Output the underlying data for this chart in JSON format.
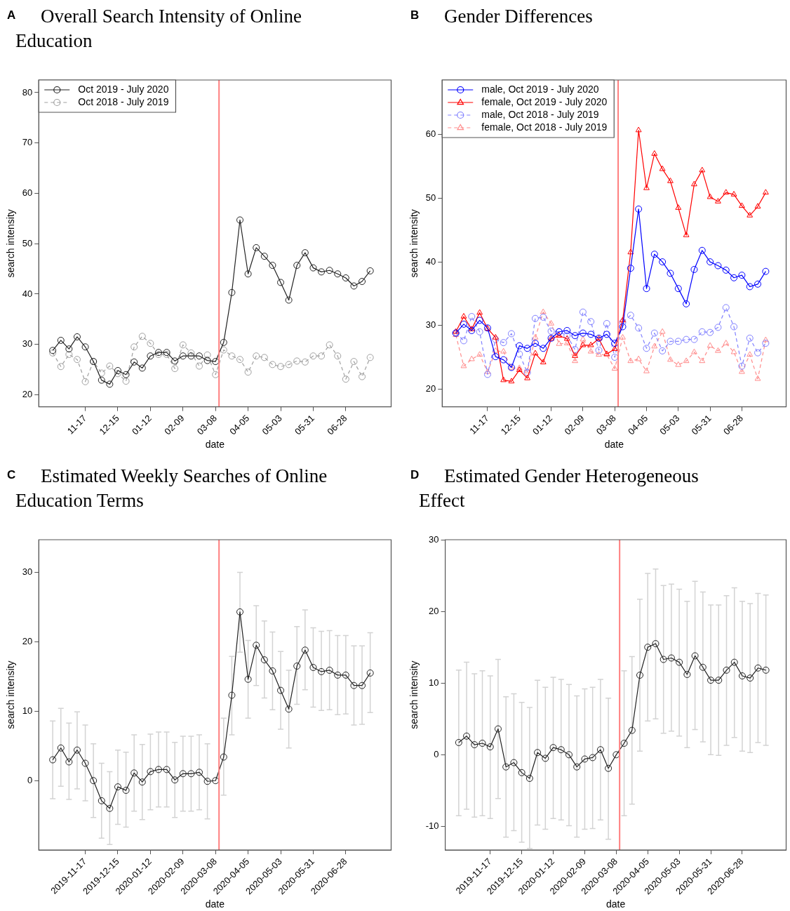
{
  "chart_data": [
    {
      "type": "line",
      "title": "Overall Search Intensity of Online Education",
      "annotations": [
        "A"
      ],
      "xlabel": "date",
      "ylabel": "search intensity",
      "legend": "top left",
      "x": [
        "2019-10-20",
        "2019-10-27",
        "2019-11-03",
        "2019-11-10",
        "2019-11-17",
        "2019-11-24",
        "2019-12-01",
        "2019-12-08",
        "2019-12-15",
        "2019-12-22",
        "2019-12-29",
        "2020-01-05",
        "2020-01-12",
        "2020-01-19",
        "2020-01-26",
        "2020-02-02",
        "2020-02-09",
        "2020-02-16",
        "2020-02-23",
        "2020-03-01",
        "2020-03-08",
        "2020-03-15",
        "2020-03-22",
        "2020-03-29",
        "2020-04-05",
        "2020-04-12",
        "2020-04-19",
        "2020-04-26",
        "2020-05-03",
        "2020-05-10",
        "2020-05-17",
        "2020-05-24",
        "2020-05-31",
        "2020-06-07",
        "2020-06-14",
        "2020-06-21",
        "2020-06-28",
        "2020-07-05",
        "2020-07-12",
        "2020-07-19"
      ],
      "xlim": [
        "2019-10-08",
        "2020-08-06"
      ],
      "xticks": [
        {
          "value": "2019-11-17",
          "label": "11-17"
        },
        {
          "value": "2019-12-15",
          "label": "12-15"
        },
        {
          "value": "2020-01-12",
          "label": "01-12"
        },
        {
          "value": "2020-02-09",
          "label": "02-09"
        },
        {
          "value": "2020-03-08",
          "label": "03-08"
        },
        {
          "value": "2020-04-05",
          "label": "04-05"
        },
        {
          "value": "2020-05-03",
          "label": "05-03"
        },
        {
          "value": "2020-05-31",
          "label": "05-31"
        },
        {
          "value": "2020-06-28",
          "label": "06-28"
        }
      ],
      "ylim": [
        17.6,
        82.5
      ],
      "yticks": [
        20,
        30,
        40,
        50,
        60,
        70,
        80
      ],
      "ref_lines": [
        {
          "axis": "x",
          "value": "2020-03-11",
          "color": "#ff7f7f"
        }
      ],
      "series": [
        {
          "name": "Oct 2019 - July 2020",
          "color": "#222222",
          "marker": "circle",
          "line_style": "solid",
          "values": [
            28.8,
            30.8,
            29.1,
            31.5,
            29.5,
            26.6,
            22.9,
            22.1,
            24.8,
            24.0,
            26.5,
            25.3,
            27.7,
            28.4,
            28.4,
            26.7,
            27.7,
            27.7,
            27.7,
            26.8,
            26.6,
            30.4,
            40.3,
            54.7,
            44.0,
            49.2,
            47.5,
            45.7,
            42.3,
            38.8,
            45.7,
            48.2,
            45.2,
            44.4,
            44.7,
            44.0,
            43.2,
            41.6,
            42.5,
            44.6
          ]
        },
        {
          "name": "Oct 2018 - July 2019",
          "color": "#a0a0a0",
          "marker": "circle",
          "line_style": "dashed",
          "values": [
            28.3,
            25.6,
            28.0,
            27.0,
            22.6,
            26.6,
            24.3,
            25.7,
            24.2,
            22.7,
            29.5,
            31.6,
            30.2,
            28.0,
            28.0,
            25.2,
            29.9,
            28.3,
            25.7,
            27.9,
            24.0,
            28.9,
            27.7,
            27.0,
            24.5,
            27.7,
            27.4,
            26.0,
            25.6,
            26.0,
            26.7,
            26.5,
            27.7,
            27.7,
            29.9,
            27.7,
            23.1,
            26.6,
            23.6,
            27.4
          ]
        }
      ]
    },
    {
      "type": "line",
      "title": "Gender Differences",
      "annotations": [
        "B"
      ],
      "xlabel": "date",
      "ylabel": "search intensity",
      "legend": "top left",
      "x": [
        "2019-10-20",
        "2019-10-27",
        "2019-11-03",
        "2019-11-10",
        "2019-11-17",
        "2019-11-24",
        "2019-12-01",
        "2019-12-08",
        "2019-12-15",
        "2019-12-22",
        "2019-12-29",
        "2020-01-05",
        "2020-01-12",
        "2020-01-19",
        "2020-01-26",
        "2020-02-02",
        "2020-02-09",
        "2020-02-16",
        "2020-02-23",
        "2020-03-01",
        "2020-03-08",
        "2020-03-15",
        "2020-03-22",
        "2020-03-29",
        "2020-04-05",
        "2020-04-12",
        "2020-04-19",
        "2020-04-26",
        "2020-05-03",
        "2020-05-10",
        "2020-05-17",
        "2020-05-24",
        "2020-05-31",
        "2020-06-07",
        "2020-06-14",
        "2020-06-21",
        "2020-06-28",
        "2020-07-05",
        "2020-07-12",
        "2020-07-19"
      ],
      "xlim": [
        "2019-10-08",
        "2020-08-06"
      ],
      "xticks": [
        {
          "value": "2019-11-17",
          "label": "11-17"
        },
        {
          "value": "2019-12-15",
          "label": "12-15"
        },
        {
          "value": "2020-01-12",
          "label": "01-12"
        },
        {
          "value": "2020-02-09",
          "label": "02-09"
        },
        {
          "value": "2020-03-08",
          "label": "03-08"
        },
        {
          "value": "2020-04-05",
          "label": "04-05"
        },
        {
          "value": "2020-05-03",
          "label": "05-03"
        },
        {
          "value": "2020-05-31",
          "label": "05-31"
        },
        {
          "value": "2020-06-28",
          "label": "06-28"
        }
      ],
      "ylim": [
        17.2,
        68.6
      ],
      "yticks": [
        20,
        30,
        40,
        50,
        60
      ],
      "ref_lines": [
        {
          "axis": "x",
          "value": "2020-03-11",
          "color": "#ff7f7f"
        }
      ],
      "series": [
        {
          "name": "male, Oct 2019 - July 2020",
          "color": "#0000ff",
          "marker": "circle",
          "line_style": "solid",
          "values": [
            28.8,
            30.2,
            29.2,
            30.8,
            29.6,
            25.1,
            24.6,
            23.4,
            26.8,
            26.4,
            27.2,
            26.4,
            28.0,
            29.0,
            29.2,
            28.4,
            28.8,
            28.6,
            28.0,
            28.6,
            27.2,
            29.8,
            39.0,
            48.3,
            35.8,
            41.2,
            40.0,
            38.2,
            35.8,
            33.4,
            38.8,
            41.8,
            40.0,
            39.4,
            38.7,
            37.5,
            37.9,
            36.1,
            36.5,
            38.5
          ]
        },
        {
          "name": "female, Oct 2019 - July 2020",
          "color": "#ff0000",
          "marker": "triangle",
          "line_style": "solid",
          "values": [
            29.0,
            31.4,
            29.4,
            32.0,
            29.5,
            28.1,
            21.4,
            21.2,
            23.0,
            21.7,
            25.6,
            24.2,
            27.9,
            28.4,
            27.9,
            25.2,
            26.9,
            26.9,
            27.9,
            25.5,
            26.3,
            30.8,
            41.5,
            60.7,
            51.6,
            57.0,
            54.6,
            52.7,
            48.5,
            44.2,
            52.2,
            54.4,
            50.2,
            49.5,
            50.9,
            50.6,
            48.8,
            47.3,
            48.7,
            50.9
          ]
        },
        {
          "name": "male, Oct 2018 - July 2019",
          "color": "#8080ff",
          "marker": "circle",
          "line_style": "dashed",
          "values": [
            28.8,
            27.6,
            31.4,
            29.0,
            22.3,
            27.8,
            27.3,
            28.7,
            25.5,
            22.6,
            31.1,
            31.3,
            29.1,
            29.0,
            28.4,
            26.2,
            32.1,
            30.6,
            26.1,
            30.3,
            25.0,
            30.5,
            31.6,
            29.6,
            26.4,
            28.8,
            26.0,
            27.5,
            27.5,
            27.8,
            27.8,
            29.0,
            28.9,
            29.7,
            32.8,
            29.8,
            23.6,
            28.0,
            25.7,
            27.2
          ]
        },
        {
          "name": "female, Oct 2018 - July 2019",
          "color": "#ff8c8c",
          "marker": "triangle",
          "line_style": "dashed",
          "values": [
            28.5,
            23.6,
            24.7,
            25.4,
            22.7,
            26.0,
            25.9,
            23.3,
            23.3,
            22.8,
            28.1,
            32.1,
            30.3,
            27.1,
            27.2,
            24.4,
            27.8,
            25.9,
            25.4,
            25.4,
            23.2,
            28.1,
            24.4,
            24.7,
            22.8,
            26.7,
            29.0,
            24.6,
            23.8,
            24.4,
            25.8,
            24.4,
            26.8,
            26.0,
            27.2,
            25.8,
            22.7,
            25.4,
            21.6,
            27.7
          ]
        }
      ]
    },
    {
      "type": "line",
      "title": "Estimated Weekly Searches of Online Education Terms",
      "annotations": [
        "C"
      ],
      "xlabel": "date",
      "ylabel": "search intensity",
      "x": [
        "2019-10-20",
        "2019-10-27",
        "2019-11-03",
        "2019-11-10",
        "2019-11-17",
        "2019-11-24",
        "2019-12-01",
        "2019-12-08",
        "2019-12-15",
        "2019-12-22",
        "2019-12-29",
        "2020-01-05",
        "2020-01-12",
        "2020-01-19",
        "2020-01-26",
        "2020-02-02",
        "2020-02-09",
        "2020-02-16",
        "2020-02-23",
        "2020-03-01",
        "2020-03-08",
        "2020-03-15",
        "2020-03-22",
        "2020-03-29",
        "2020-04-05",
        "2020-04-12",
        "2020-04-19",
        "2020-04-26",
        "2020-05-03",
        "2020-05-10",
        "2020-05-17",
        "2020-05-24",
        "2020-05-31",
        "2020-06-07",
        "2020-06-14",
        "2020-06-21",
        "2020-06-28",
        "2020-07-05",
        "2020-07-12",
        "2020-07-19"
      ],
      "xlim": [
        "2019-10-08",
        "2020-08-06"
      ],
      "xticks": [
        "2019-11-17",
        "2019-12-15",
        "2020-01-12",
        "2020-02-09",
        "2020-03-08",
        "2020-04-05",
        "2020-05-03",
        "2020-05-31",
        "2020-06-28"
      ],
      "ylim": [
        -10,
        34.7
      ],
      "yticks": [
        0,
        10,
        20,
        30
      ],
      "ref_lines": [
        {
          "axis": "x",
          "value": "2020-03-11",
          "color": "#ff7f7f"
        }
      ],
      "series": [
        {
          "color": "#222222",
          "marker": "circle",
          "line_style": "solid",
          "values": [
            3.0,
            4.7,
            2.7,
            4.4,
            2.5,
            0.0,
            -2.9,
            -4.0,
            -0.9,
            -1.4,
            1.1,
            -0.2,
            1.3,
            1.6,
            1.6,
            0.1,
            1.0,
            1.0,
            1.2,
            -0.1,
            0.0,
            3.4,
            12.3,
            24.3,
            14.6,
            19.5,
            17.4,
            15.8,
            13.0,
            10.3,
            16.5,
            18.8,
            16.3,
            15.7,
            15.9,
            15.2,
            15.2,
            13.7,
            13.7,
            15.5
          ],
          "errors": [
            [
              -2.6,
              8.6
            ],
            [
              -0.8,
              10.4
            ],
            [
              -2.7,
              8.3
            ],
            [
              -1.2,
              9.9
            ],
            [
              -2.9,
              8.0
            ],
            [
              -5.3,
              5.3
            ],
            [
              -8.3,
              2.5
            ],
            [
              -9.2,
              1.3
            ],
            [
              -6.3,
              4.4
            ],
            [
              -6.7,
              4.1
            ],
            [
              -4.4,
              6.6
            ],
            [
              -5.6,
              5.2
            ],
            [
              -4.2,
              6.7
            ],
            [
              -3.8,
              7.0
            ],
            [
              -3.8,
              7.0
            ],
            [
              -5.3,
              5.5
            ],
            [
              -4.4,
              6.4
            ],
            [
              -4.4,
              6.4
            ],
            [
              -4.2,
              6.6
            ],
            [
              -5.5,
              5.3
            ],
            null,
            [
              -2.1,
              9.0
            ],
            [
              6.6,
              17.9
            ],
            [
              18.5,
              30.0
            ],
            [
              9.0,
              20.2
            ],
            [
              13.7,
              25.2
            ],
            [
              11.9,
              23.0
            ],
            [
              10.2,
              21.4
            ],
            [
              7.4,
              18.6
            ],
            [
              4.7,
              15.9
            ],
            [
              11.0,
              22.2
            ],
            [
              13.1,
              24.6
            ],
            [
              10.6,
              22.0
            ],
            [
              10.1,
              21.5
            ],
            [
              10.2,
              21.6
            ],
            [
              9.5,
              20.9
            ],
            [
              9.6,
              20.9
            ],
            [
              8.0,
              19.4
            ],
            [
              8.1,
              19.4
            ],
            [
              9.8,
              21.3
            ]
          ]
        }
      ]
    },
    {
      "type": "line",
      "title": "Estimated Gender Heterogeneous Effect",
      "annotations": [
        "D"
      ],
      "xlabel": "date",
      "ylabel": "search intensity",
      "x": [
        "2019-10-20",
        "2019-10-27",
        "2019-11-03",
        "2019-11-10",
        "2019-11-17",
        "2019-11-24",
        "2019-12-01",
        "2019-12-08",
        "2019-12-15",
        "2019-12-22",
        "2019-12-29",
        "2020-01-05",
        "2020-01-12",
        "2020-01-19",
        "2020-01-26",
        "2020-02-02",
        "2020-02-09",
        "2020-02-16",
        "2020-02-23",
        "2020-03-01",
        "2020-03-08",
        "2020-03-15",
        "2020-03-22",
        "2020-03-29",
        "2020-04-05",
        "2020-04-12",
        "2020-04-19",
        "2020-04-26",
        "2020-05-03",
        "2020-05-10",
        "2020-05-17",
        "2020-05-24",
        "2020-05-31",
        "2020-06-07",
        "2020-06-14",
        "2020-06-21",
        "2020-06-28",
        "2020-07-05",
        "2020-07-12",
        "2020-07-19"
      ],
      "xlim": [
        "2019-10-08",
        "2020-08-06"
      ],
      "xticks": [
        "2019-11-17",
        "2019-12-15",
        "2020-01-12",
        "2020-02-09",
        "2020-03-08",
        "2020-04-05",
        "2020-05-03",
        "2020-05-31",
        "2020-06-28"
      ],
      "ylim": [
        -13.3,
        30
      ],
      "yticks": [
        -10,
        0,
        10,
        20,
        30
      ],
      "ref_lines": [
        {
          "axis": "x",
          "value": "2020-03-11",
          "color": "#ff7f7f"
        }
      ],
      "series": [
        {
          "color": "#222222",
          "marker": "circle",
          "line_style": "solid",
          "values": [
            1.7,
            2.6,
            1.4,
            1.6,
            1.1,
            3.6,
            -1.7,
            -1.1,
            -2.5,
            -3.3,
            0.3,
            -0.5,
            1.0,
            0.7,
            0.0,
            -1.7,
            -0.6,
            -0.4,
            0.7,
            -1.9,
            0.0,
            1.6,
            3.4,
            11.1,
            15.0,
            15.5,
            13.3,
            13.5,
            12.9,
            11.2,
            13.8,
            12.2,
            10.4,
            10.4,
            11.8,
            12.9,
            11.0,
            10.7,
            12.1,
            11.8
          ],
          "errors": [
            [
              -8.5,
              11.8
            ],
            [
              -7.6,
              12.9
            ],
            [
              -8.7,
              11.3
            ],
            [
              -8.5,
              11.7
            ],
            [
              -8.9,
              11.0
            ],
            [
              -6.1,
              13.3
            ],
            [
              -11.5,
              8.1
            ],
            [
              -10.6,
              8.5
            ],
            [
              -12.2,
              7.3
            ],
            [
              -13.1,
              6.6
            ],
            [
              -9.8,
              10.4
            ],
            [
              -10.4,
              9.4
            ],
            [
              -8.9,
              10.8
            ],
            [
              -9.1,
              10.5
            ],
            [
              -9.9,
              9.8
            ],
            [
              -11.5,
              8.2
            ],
            [
              -10.4,
              9.2
            ],
            [
              -10.3,
              9.4
            ],
            [
              -9.1,
              10.5
            ],
            [
              -11.8,
              7.9
            ],
            null,
            [
              -8.5,
              11.7
            ],
            [
              -6.9,
              13.7
            ],
            [
              0.5,
              21.7
            ],
            [
              4.7,
              25.3
            ],
            [
              5.0,
              25.9
            ],
            [
              3.0,
              23.6
            ],
            [
              3.3,
              23.8
            ],
            [
              2.6,
              23.1
            ],
            [
              1.0,
              21.4
            ],
            [
              3.5,
              24.2
            ],
            [
              1.8,
              22.7
            ],
            [
              0.0,
              20.9
            ],
            [
              -0.1,
              20.9
            ],
            [
              1.3,
              22.2
            ],
            [
              2.4,
              23.3
            ],
            [
              0.5,
              21.4
            ],
            [
              0.3,
              21.1
            ],
            [
              1.7,
              22.5
            ],
            [
              1.3,
              22.3
            ]
          ]
        }
      ]
    }
  ]
}
